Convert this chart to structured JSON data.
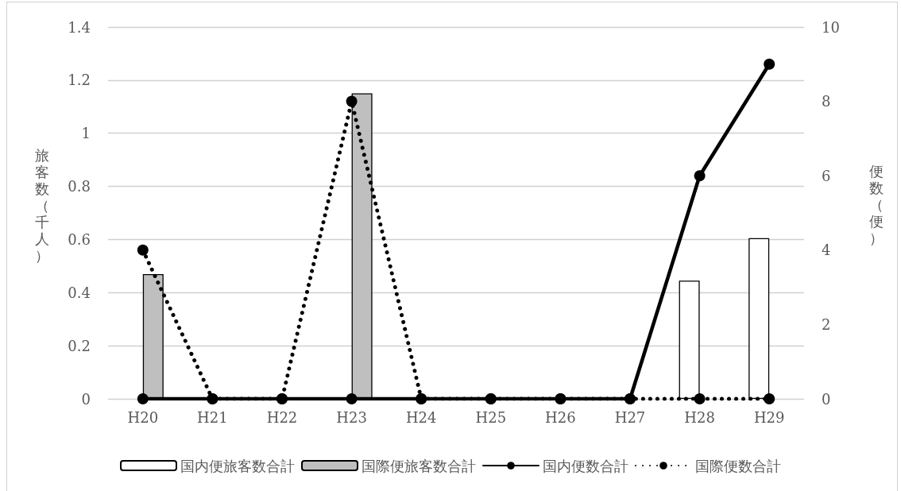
{
  "chart_data": {
    "type": "bar",
    "categories": [
      "H20",
      "H21",
      "H22",
      "H23",
      "H24",
      "H25",
      "H26",
      "H27",
      "H28",
      "H29"
    ],
    "ylabel": "旅客数（千人）",
    "y2label": "便数（便）",
    "ylim": [
      0,
      1.4
    ],
    "yticks": [
      0,
      0.2,
      0.4,
      0.6,
      0.8,
      1,
      1.2,
      1.4
    ],
    "y2lim": [
      0,
      10
    ],
    "y2ticks": [
      0,
      2,
      4,
      6,
      8,
      10
    ],
    "grid": "y",
    "legend": "bottom",
    "marker": "circle",
    "series": [
      {
        "name": "国内便旅客数合計",
        "color": "#ffffff",
        "values": [
          null,
          null,
          null,
          null,
          null,
          null,
          null,
          null,
          0.445,
          0.605
        ]
      },
      {
        "name": "国際便旅客数合計",
        "color": "#bfbfbf",
        "values": [
          0.47,
          null,
          null,
          1.15,
          null,
          null,
          null,
          null,
          null,
          null
        ]
      },
      {
        "name": "国内便数合計",
        "type": "line",
        "axis": "y2",
        "color": "#000000",
        "line_style": "solid",
        "values": [
          0,
          0,
          0,
          0,
          0,
          0,
          0,
          0,
          6,
          9
        ]
      },
      {
        "name": "国際便数合計",
        "type": "line",
        "axis": "y2",
        "color": "#000000",
        "line_style": "dotted",
        "values": [
          4,
          0,
          0,
          8,
          0,
          0,
          0,
          0,
          0,
          0
        ]
      }
    ]
  }
}
